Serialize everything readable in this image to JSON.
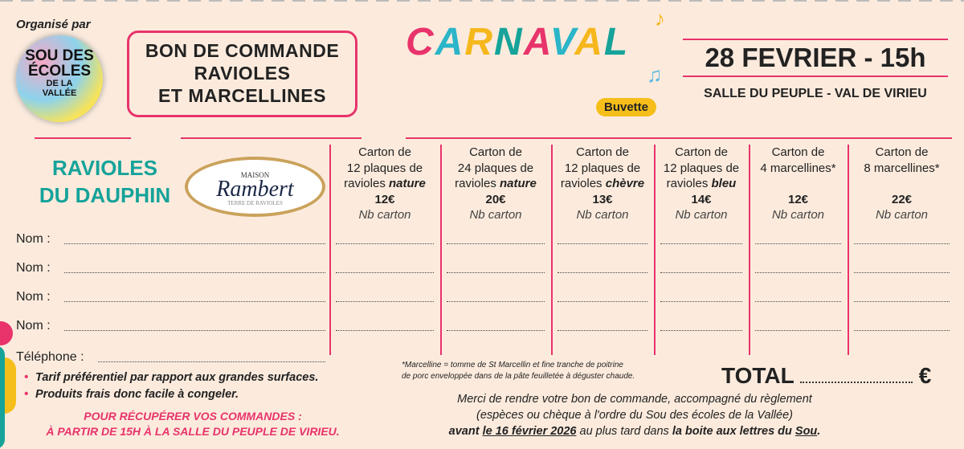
{
  "header": {
    "organised_by": "Organisé par",
    "logo": {
      "line1": "SOU DES",
      "line2": "ÉCOLES",
      "line3": "DE LA",
      "line4": "VALLÉE"
    },
    "title_lines": [
      "BON DE COMMANDE",
      "RAVIOLES",
      "ET MARCELLINES"
    ],
    "event": "CARNAVAL",
    "buvette": "Buvette",
    "date": "28 FEVRIER - 15h",
    "place": "SALLE DU PEUPLE - VAL DE VIRIEU"
  },
  "brand": {
    "product": [
      "RAVIOLES",
      "DU DAUPHIN"
    ],
    "maison": "MAISON",
    "rambert": "Rambert",
    "tagline": "TERRE DE RAVIOLES"
  },
  "columns": [
    {
      "l1": "Carton de",
      "l2": "12 plaques de",
      "l3a": "ravioles ",
      "l3b": "nature",
      "price": "12€",
      "nb": "Nb carton"
    },
    {
      "l1": "Carton de",
      "l2": "24 plaques de",
      "l3a": "ravioles ",
      "l3b": "nature",
      "price": "20€",
      "nb": "Nb carton"
    },
    {
      "l1": "Carton de",
      "l2": "12 plaques de",
      "l3a": "ravioles ",
      "l3b": "chèvre",
      "price": "13€",
      "nb": "Nb carton"
    },
    {
      "l1": "Carton de",
      "l2": "12 plaques de",
      "l3a": "ravioles ",
      "l3b": "bleu",
      "price": "14€",
      "nb": "Nb carton"
    },
    {
      "l1": "Carton de",
      "l2": "4 marcellines*",
      "l3a": "",
      "l3b": "",
      "price": "12€",
      "nb": "Nb carton"
    },
    {
      "l1": "Carton de",
      "l2": "8 marcellines*",
      "l3a": "",
      "l3b": "",
      "price": "22€",
      "nb": "Nb carton"
    }
  ],
  "form": {
    "name_label": "Nom :",
    "phone_label": "Téléphone :"
  },
  "bullets": [
    "Tarif préférentiel par rapport aux grandes surfaces.",
    "Produits frais donc facile à congeler."
  ],
  "pickup": [
    "POUR RÉCUPÉRER VOS COMMANDES :",
    "À PARTIR DE 15H À LA SALLE DU PEUPLE DE VIRIEU."
  ],
  "footnote": [
    "*Marcelline = tomme de St Marcellin et fine tranche de poitrine",
    "de porc enveloppée dans de la pâte feuilletée à déguster chaude."
  ],
  "total": {
    "label": "TOTAL",
    "currency": "€"
  },
  "merci": {
    "l1": "Merci de rendre votre bon de commande, accompagné du règlement",
    "l2": "(espèces ou chèque à l'ordre du Sou des écoles de la Vallée)",
    "l3a": "avant ",
    "l3b": "le 16 février 2026",
    "l3c": " au plus tard dans ",
    "l3d": "la boite aux lettres du ",
    "l3e": "Sou",
    "l3f": "."
  },
  "colors": {
    "pink": "#e8336b",
    "teal": "#15a39a",
    "yellow": "#f6be1a",
    "background": "#fcebdd"
  }
}
